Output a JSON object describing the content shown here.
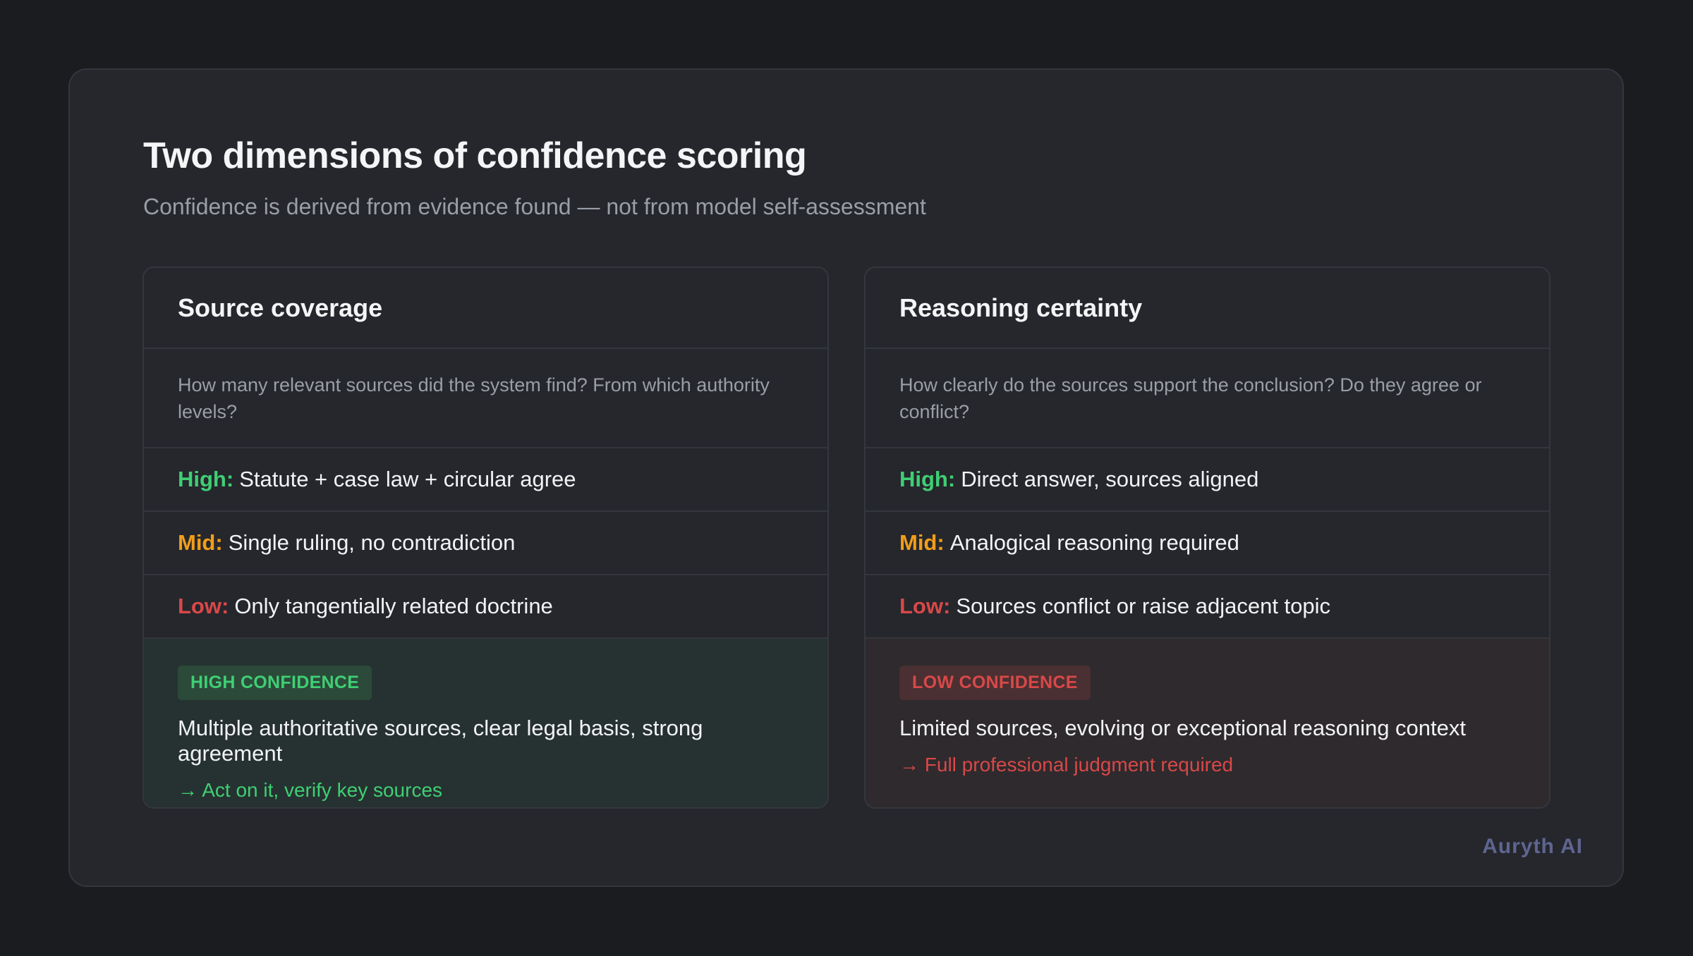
{
  "header": {
    "title": "Two dimensions of confidence scoring",
    "subtitle": "Confidence is derived from evidence found — not from model self-assessment"
  },
  "cards": [
    {
      "title": "Source coverage",
      "description": "How many relevant sources did the system find? From which authority levels?",
      "levels": [
        {
          "label": "High:",
          "text": "Statute + case law + circular agree",
          "color": "#3fcf74"
        },
        {
          "label": "Mid:",
          "text": "Single ruling, no contradiction",
          "color": "#f29d1a"
        },
        {
          "label": "Low:",
          "text": "Only tangentially related doctrine",
          "color": "#d94848"
        }
      ],
      "verdict": {
        "badge": "HIGH CONFIDENCE",
        "text": "Multiple authoritative sources, clear legal basis, strong agreement",
        "action": "→ Act on it, verify key sources",
        "color": "#3fcf74"
      }
    },
    {
      "title": "Reasoning certainty",
      "description": "How clearly do the sources support the conclusion? Do they agree or conflict?",
      "levels": [
        {
          "label": "High:",
          "text": "Direct answer, sources aligned",
          "color": "#3fcf74"
        },
        {
          "label": "Mid:",
          "text": "Analogical reasoning required",
          "color": "#f29d1a"
        },
        {
          "label": "Low:",
          "text": "Sources conflict or raise adjacent topic",
          "color": "#d94848"
        }
      ],
      "verdict": {
        "badge": "LOW CONFIDENCE",
        "text": "Limited sources, evolving or exceptional reasoning context",
        "action": "→ Full professional judgment required",
        "color": "#d94848"
      }
    }
  ],
  "footer": {
    "brand": "Auryth AI"
  }
}
